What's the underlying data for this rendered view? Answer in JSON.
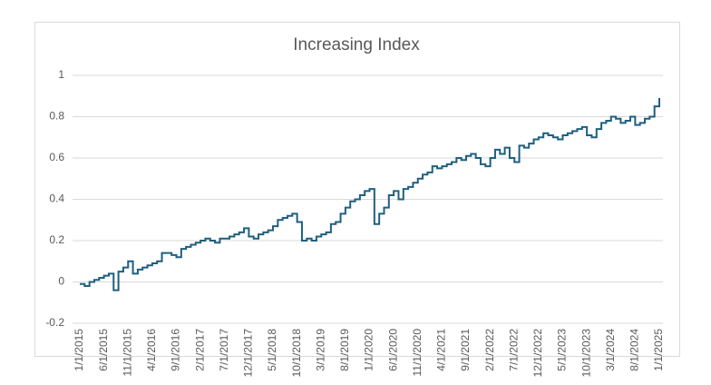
{
  "chart_data": {
    "type": "line",
    "title": "Increasing Index",
    "categories": [
      "1/1/2015",
      null,
      null,
      null,
      null,
      "6/1/2015",
      null,
      null,
      null,
      null,
      "11/1/2015",
      null,
      null,
      null,
      null,
      "4/1/2016",
      null,
      null,
      null,
      null,
      "9/1/2016",
      null,
      null,
      null,
      null,
      "2/1/2017",
      null,
      null,
      null,
      null,
      "7/1/2017",
      null,
      null,
      null,
      null,
      "12/1/2017",
      null,
      null,
      null,
      null,
      "5/1/2018",
      null,
      null,
      null,
      null,
      "10/1/2018",
      null,
      null,
      null,
      null,
      "3/1/2019",
      null,
      null,
      null,
      null,
      "8/1/2019",
      null,
      null,
      null,
      null,
      "1/1/2020",
      null,
      null,
      null,
      null,
      "6/1/2020",
      null,
      null,
      null,
      null,
      "11/1/2020",
      null,
      null,
      null,
      null,
      "4/1/2021",
      null,
      null,
      null,
      null,
      "9/1/2021",
      null,
      null,
      null,
      null,
      "2/1/2022",
      null,
      null,
      null,
      null,
      "7/1/2022",
      null,
      null,
      null,
      null,
      "12/1/2022",
      null,
      null,
      null,
      null,
      "5/1/2023",
      null,
      null,
      null,
      null,
      "10/1/2023",
      null,
      null,
      null,
      null,
      "3/1/2024",
      null,
      null,
      null,
      null,
      "8/1/2024",
      null,
      null,
      null,
      null,
      "1/1/2025"
    ],
    "values": [
      -0.01,
      -0.02,
      0,
      0.01,
      0.02,
      0.03,
      0.04,
      -0.04,
      0.05,
      0.07,
      0.1,
      0.04,
      0.06,
      0.07,
      0.08,
      0.09,
      0.1,
      0.14,
      0.14,
      0.13,
      0.12,
      0.16,
      0.17,
      0.18,
      0.19,
      0.2,
      0.21,
      0.2,
      0.19,
      0.21,
      0.21,
      0.22,
      0.23,
      0.24,
      0.26,
      0.22,
      0.21,
      0.23,
      0.24,
      0.25,
      0.27,
      0.3,
      0.31,
      0.32,
      0.33,
      0.29,
      0.2,
      0.21,
      0.2,
      0.22,
      0.23,
      0.24,
      0.28,
      0.29,
      0.33,
      0.36,
      0.39,
      0.4,
      0.42,
      0.44,
      0.45,
      0.28,
      0.33,
      0.36,
      0.42,
      0.44,
      0.4,
      0.45,
      0.46,
      0.48,
      0.5,
      0.52,
      0.53,
      0.56,
      0.55,
      0.56,
      0.57,
      0.58,
      0.6,
      0.59,
      0.61,
      0.62,
      0.6,
      0.57,
      0.56,
      0.6,
      0.64,
      0.62,
      0.65,
      0.6,
      0.58,
      0.66,
      0.65,
      0.67,
      0.69,
      0.7,
      0.72,
      0.71,
      0.7,
      0.69,
      0.71,
      0.72,
      0.73,
      0.74,
      0.75,
      0.71,
      0.7,
      0.74,
      0.77,
      0.78,
      0.8,
      0.79,
      0.77,
      0.78,
      0.8,
      0.76,
      0.77,
      0.79,
      0.8,
      0.85,
      0.89
    ],
    "color": "#1f5f7e",
    "step": true,
    "ylim": [
      -0.2,
      1
    ],
    "yticks": [
      -0.2,
      0,
      0.2,
      0.4,
      0.6,
      0.8,
      1
    ],
    "grid": true
  }
}
